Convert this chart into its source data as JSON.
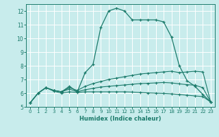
{
  "xlabel": "Humidex (Indice chaleur)",
  "bg_color": "#c8ecec",
  "line_color": "#1a7a6a",
  "grid_color": "#ffffff",
  "xlim": [
    -0.5,
    23.5
  ],
  "ylim": [
    5.0,
    12.5
  ],
  "xticks": [
    0,
    1,
    2,
    3,
    4,
    5,
    6,
    7,
    8,
    9,
    10,
    11,
    12,
    13,
    14,
    15,
    16,
    17,
    18,
    19,
    20,
    21,
    22,
    23
  ],
  "yticks": [
    5,
    6,
    7,
    8,
    9,
    10,
    11,
    12
  ],
  "line1_x": [
    0,
    1,
    2,
    3,
    4,
    5,
    6,
    7,
    8,
    9,
    10,
    11,
    12,
    13,
    14,
    15,
    16,
    17,
    18,
    19,
    20,
    21,
    22,
    23
  ],
  "line1_y": [
    5.3,
    6.0,
    6.4,
    6.2,
    6.1,
    6.5,
    6.1,
    7.5,
    8.1,
    10.8,
    12.0,
    12.2,
    12.0,
    11.35,
    11.35,
    11.35,
    11.35,
    11.2,
    10.1,
    8.0,
    6.9,
    6.5,
    5.9,
    5.35
  ],
  "line2_x": [
    0,
    1,
    2,
    3,
    4,
    5,
    6,
    7,
    8,
    9,
    10,
    11,
    12,
    13,
    14,
    15,
    16,
    17,
    18,
    19,
    20,
    21,
    22,
    23
  ],
  "line2_y": [
    5.3,
    6.0,
    6.4,
    6.2,
    6.1,
    6.4,
    6.2,
    6.5,
    6.7,
    6.85,
    7.0,
    7.1,
    7.2,
    7.3,
    7.4,
    7.45,
    7.5,
    7.55,
    7.6,
    7.5,
    7.55,
    7.6,
    7.55,
    5.35
  ],
  "line3_x": [
    0,
    1,
    2,
    3,
    4,
    5,
    6,
    7,
    8,
    9,
    10,
    11,
    12,
    13,
    14,
    15,
    16,
    17,
    18,
    19,
    20,
    21,
    22,
    23
  ],
  "line3_y": [
    5.3,
    6.0,
    6.4,
    6.2,
    6.1,
    6.3,
    6.1,
    6.25,
    6.35,
    6.45,
    6.5,
    6.55,
    6.6,
    6.65,
    6.7,
    6.72,
    6.75,
    6.78,
    6.75,
    6.68,
    6.62,
    6.58,
    6.4,
    5.35
  ],
  "line4_x": [
    0,
    1,
    2,
    3,
    4,
    5,
    6,
    7,
    8,
    9,
    10,
    11,
    12,
    13,
    14,
    15,
    16,
    17,
    18,
    19,
    20,
    21,
    22,
    23
  ],
  "line4_y": [
    5.3,
    6.0,
    6.4,
    6.15,
    6.0,
    6.1,
    6.05,
    6.1,
    6.1,
    6.1,
    6.1,
    6.1,
    6.1,
    6.08,
    6.05,
    6.02,
    6.0,
    5.98,
    5.95,
    5.9,
    5.85,
    5.8,
    5.75,
    5.35
  ]
}
